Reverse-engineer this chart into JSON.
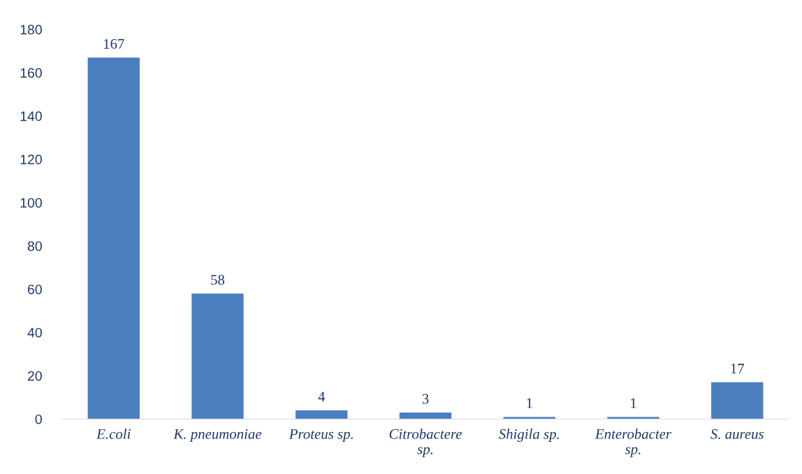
{
  "chart_data": {
    "type": "bar",
    "categories": [
      "E.coli",
      "K. pneumoniae",
      "Proteus sp.",
      "Citrobactere sp.",
      "Shigila sp.",
      "Enterobacter sp.",
      "S. aureus"
    ],
    "values": [
      167,
      58,
      4,
      3,
      1,
      1,
      17
    ],
    "color": "#4a7ebf",
    "ylim": [
      0,
      180
    ],
    "yticks": [
      0,
      20,
      40,
      60,
      80,
      100,
      120,
      140,
      160,
      180
    ],
    "data_labels": true,
    "grid": false,
    "legend": false
  }
}
